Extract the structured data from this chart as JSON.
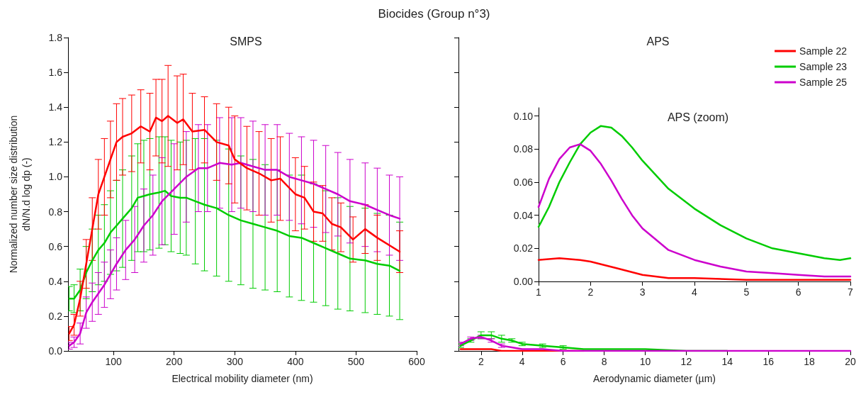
{
  "chart_data": [
    {
      "type": "line",
      "title": "Biocides (Group n°3)",
      "subtitle": "SMPS",
      "xlabel": "Electrical mobility diameter (nm)",
      "ylabel": "Normalized number size distribution\ndN/N.d log dp (-)",
      "xlim": [
        25,
        600
      ],
      "xticks": [
        100,
        200,
        300,
        400,
        500,
        600
      ],
      "ylim": [
        0,
        1.8
      ],
      "yticks": [
        {
          "value": 0,
          "label": "0.0"
        },
        {
          "value": 0.2,
          "label": "0.2"
        },
        {
          "value": 0.4,
          "label": "0.4"
        },
        {
          "value": 0.6,
          "label": "0.6"
        },
        {
          "value": 0.8,
          "label": "0.8"
        },
        {
          "value": 1,
          "label": "1.0"
        },
        {
          "value": 1.2,
          "label": "1.2"
        },
        {
          "value": 1.4,
          "label": "1.4"
        },
        {
          "value": 1.6,
          "label": "1.6"
        },
        {
          "value": 1.8,
          "label": "1.8"
        }
      ],
      "marker": "none",
      "line_style": "solid",
      "legend": false,
      "series": [
        {
          "color": "#00cc00",
          "x": [
            27,
            35,
            45,
            55,
            65,
            75,
            85,
            95,
            105,
            115,
            130,
            140,
            150,
            160,
            175,
            185,
            195,
            210,
            220,
            235,
            250,
            270,
            290,
            310,
            330,
            350,
            370,
            390,
            410,
            430,
            450,
            470,
            490,
            515,
            535,
            555,
            572
          ],
          "values": [
            0.3,
            0.3,
            0.35,
            0.45,
            0.52,
            0.58,
            0.62,
            0.68,
            0.72,
            0.76,
            0.82,
            0.88,
            0.89,
            0.9,
            0.91,
            0.92,
            0.89,
            0.88,
            0.88,
            0.86,
            0.84,
            0.82,
            0.78,
            0.75,
            0.73,
            0.71,
            0.69,
            0.66,
            0.65,
            0.62,
            0.59,
            0.56,
            0.53,
            0.52,
            0.5,
            0.49,
            0.46
          ],
          "errors": [
            0.07,
            0.08,
            0.12,
            0.15,
            0.18,
            0.2,
            0.22,
            0.24,
            0.26,
            0.28,
            0.3,
            0.31,
            0.32,
            0.32,
            0.32,
            0.31,
            0.32,
            0.32,
            0.33,
            0.36,
            0.38,
            0.39,
            0.38,
            0.37,
            0.37,
            0.36,
            0.35,
            0.35,
            0.36,
            0.34,
            0.33,
            0.32,
            0.3,
            0.3,
            0.29,
            0.29,
            0.28
          ]
        },
        {
          "color": "#cc00cc",
          "x": [
            27,
            35,
            45,
            55,
            65,
            75,
            85,
            95,
            105,
            120,
            135,
            150,
            165,
            180,
            200,
            220,
            240,
            255,
            275,
            295,
            310,
            330,
            350,
            370,
            390,
            410,
            430,
            450,
            470,
            490,
            515,
            535,
            555,
            572
          ],
          "values": [
            0.03,
            0.05,
            0.1,
            0.22,
            0.28,
            0.33,
            0.38,
            0.44,
            0.5,
            0.58,
            0.64,
            0.72,
            0.78,
            0.86,
            0.93,
            1.0,
            1.05,
            1.05,
            1.08,
            1.07,
            1.08,
            1.06,
            1.04,
            1.04,
            1.0,
            0.98,
            0.96,
            0.93,
            0.9,
            0.86,
            0.84,
            0.81,
            0.78,
            0.76
          ],
          "errors": [
            0.02,
            0.03,
            0.06,
            0.09,
            0.11,
            0.12,
            0.13,
            0.14,
            0.15,
            0.17,
            0.19,
            0.21,
            0.23,
            0.25,
            0.26,
            0.26,
            0.25,
            0.25,
            0.26,
            0.27,
            0.26,
            0.26,
            0.26,
            0.26,
            0.25,
            0.25,
            0.25,
            0.25,
            0.24,
            0.24,
            0.24,
            0.24,
            0.23,
            0.24
          ]
        },
        {
          "color": "#ff0000",
          "x": [
            27,
            35,
            45,
            55,
            65,
            75,
            85,
            95,
            105,
            115,
            130,
            145,
            160,
            170,
            180,
            190,
            205,
            215,
            230,
            250,
            270,
            290,
            300,
            320,
            340,
            360,
            375,
            400,
            415,
            430,
            445,
            460,
            475,
            495,
            515,
            535,
            572
          ],
          "values": [
            0.1,
            0.15,
            0.3,
            0.5,
            0.7,
            0.9,
            1.0,
            1.1,
            1.2,
            1.23,
            1.25,
            1.29,
            1.26,
            1.34,
            1.32,
            1.35,
            1.31,
            1.33,
            1.26,
            1.27,
            1.2,
            1.18,
            1.1,
            1.05,
            1.02,
            0.98,
            0.99,
            0.9,
            0.88,
            0.8,
            0.79,
            0.73,
            0.71,
            0.64,
            0.7,
            0.65,
            0.57
          ],
          "errors": [
            0.04,
            0.06,
            0.1,
            0.14,
            0.18,
            0.2,
            0.22,
            0.22,
            0.22,
            0.22,
            0.22,
            0.21,
            0.22,
            0.22,
            0.24,
            0.29,
            0.27,
            0.26,
            0.22,
            0.19,
            0.22,
            0.22,
            0.25,
            0.24,
            0.24,
            0.24,
            0.24,
            0.21,
            0.18,
            0.17,
            0.16,
            0.15,
            0.14,
            0.13,
            0.14,
            0.13,
            0.12
          ]
        }
      ]
    },
    {
      "type": "line",
      "title": "APS",
      "xlabel": "Aerodynamic diameter (µm)",
      "xlim": [
        0.9,
        20
      ],
      "xticks": [
        2,
        4,
        6,
        8,
        10,
        12,
        14,
        16,
        18,
        20
      ],
      "ylim": [
        0,
        1.8
      ],
      "yticks": [
        {
          "value": 0,
          "label": null
        },
        {
          "value": 0.2,
          "label": null
        },
        {
          "value": 0.4,
          "label": null
        },
        {
          "value": 0.6,
          "label": null
        },
        {
          "value": 0.8,
          "label": null
        },
        {
          "value": 1,
          "label": null
        },
        {
          "value": 1.2,
          "label": null
        },
        {
          "value": 1.4,
          "label": null
        },
        {
          "value": 1.6,
          "label": null
        },
        {
          "value": 1.8,
          "label": null
        }
      ],
      "tick_labels": "x",
      "marker": "none",
      "line_style": "solid",
      "legend": "top right",
      "series": [
        {
          "name": "Sample 22",
          "color": "#ff0000",
          "x": [
            1,
            1.5,
            2,
            2.5,
            3,
            3.5,
            4,
            5,
            6,
            7
          ],
          "values": [
            0.01,
            0.01,
            0.01,
            0.01,
            0,
            0,
            0,
            0,
            0,
            0
          ]
        },
        {
          "name": "Sample 23",
          "color": "#00cc00",
          "x": [
            1,
            1.5,
            2,
            2.5,
            3,
            3.5,
            4,
            5,
            6,
            7,
            8,
            10,
            12,
            14
          ],
          "values": [
            0.03,
            0.06,
            0.09,
            0.09,
            0.07,
            0.06,
            0.04,
            0.03,
            0.02,
            0.01,
            0.01,
            0.01,
            0,
            0
          ],
          "errors": [
            0.01,
            0.01,
            0.02,
            0.02,
            0.02,
            0.01,
            0.01,
            0.01,
            0.01,
            null,
            null,
            null,
            null,
            null
          ]
        },
        {
          "name": "Sample 25",
          "color": "#cc00cc",
          "x": [
            1,
            1.5,
            2,
            2.5,
            3,
            3.5,
            4,
            5,
            6,
            7,
            8,
            10,
            12,
            14,
            16,
            18,
            20
          ],
          "values": [
            0.04,
            0.07,
            0.08,
            0.06,
            0.03,
            0.02,
            0.01,
            0.01,
            0,
            0,
            0,
            0,
            0,
            0,
            0,
            0,
            0
          ],
          "errors": [
            0.01,
            0.01,
            0.01,
            0.01,
            0.01,
            null,
            null,
            null,
            null,
            null,
            null,
            null,
            null,
            null,
            null,
            null,
            null
          ]
        }
      ]
    },
    {
      "type": "line",
      "title": "APS (zoom)",
      "xlim": [
        1,
        7
      ],
      "xticks": [
        1,
        2,
        3,
        4,
        5,
        6,
        7
      ],
      "ylim": [
        0,
        0.105
      ],
      "yticks": [
        {
          "value": 0,
          "label": "0.00"
        },
        {
          "value": 0.02,
          "label": "0.02"
        },
        {
          "value": 0.04,
          "label": "0.04"
        },
        {
          "value": 0.06,
          "label": "0.06"
        },
        {
          "value": 0.08,
          "label": "0.08"
        },
        {
          "value": 0.1,
          "label": "0.10"
        }
      ],
      "marker": "none",
      "line_style": "solid",
      "legend": false,
      "series": [
        {
          "color": "#ff0000",
          "x": [
            1,
            1.4,
            1.8,
            2,
            2.5,
            3,
            3.5,
            4,
            5,
            6,
            7
          ],
          "values": [
            0.013,
            0.014,
            0.013,
            0.012,
            0.008,
            0.004,
            0.002,
            0.002,
            0.001,
            0.001,
            0.001
          ]
        },
        {
          "color": "#00cc00",
          "x": [
            1,
            1.2,
            1.4,
            1.6,
            1.8,
            2,
            2.2,
            2.4,
            2.6,
            2.8,
            3,
            3.5,
            4,
            4.5,
            5,
            5.5,
            6,
            6.5,
            6.8,
            7
          ],
          "values": [
            0.033,
            0.045,
            0.06,
            0.072,
            0.083,
            0.09,
            0.094,
            0.093,
            0.088,
            0.081,
            0.073,
            0.056,
            0.044,
            0.034,
            0.026,
            0.02,
            0.017,
            0.014,
            0.013,
            0.014
          ]
        },
        {
          "color": "#cc00cc",
          "x": [
            1,
            1.2,
            1.4,
            1.6,
            1.8,
            2,
            2.2,
            2.4,
            2.6,
            2.8,
            3,
            3.5,
            4,
            4.5,
            5,
            5.5,
            6,
            6.5,
            7
          ],
          "values": [
            0.045,
            0.062,
            0.074,
            0.081,
            0.083,
            0.079,
            0.071,
            0.061,
            0.05,
            0.04,
            0.032,
            0.019,
            0.013,
            0.009,
            0.006,
            0.005,
            0.004,
            0.003,
            0.003
          ]
        }
      ]
    }
  ]
}
